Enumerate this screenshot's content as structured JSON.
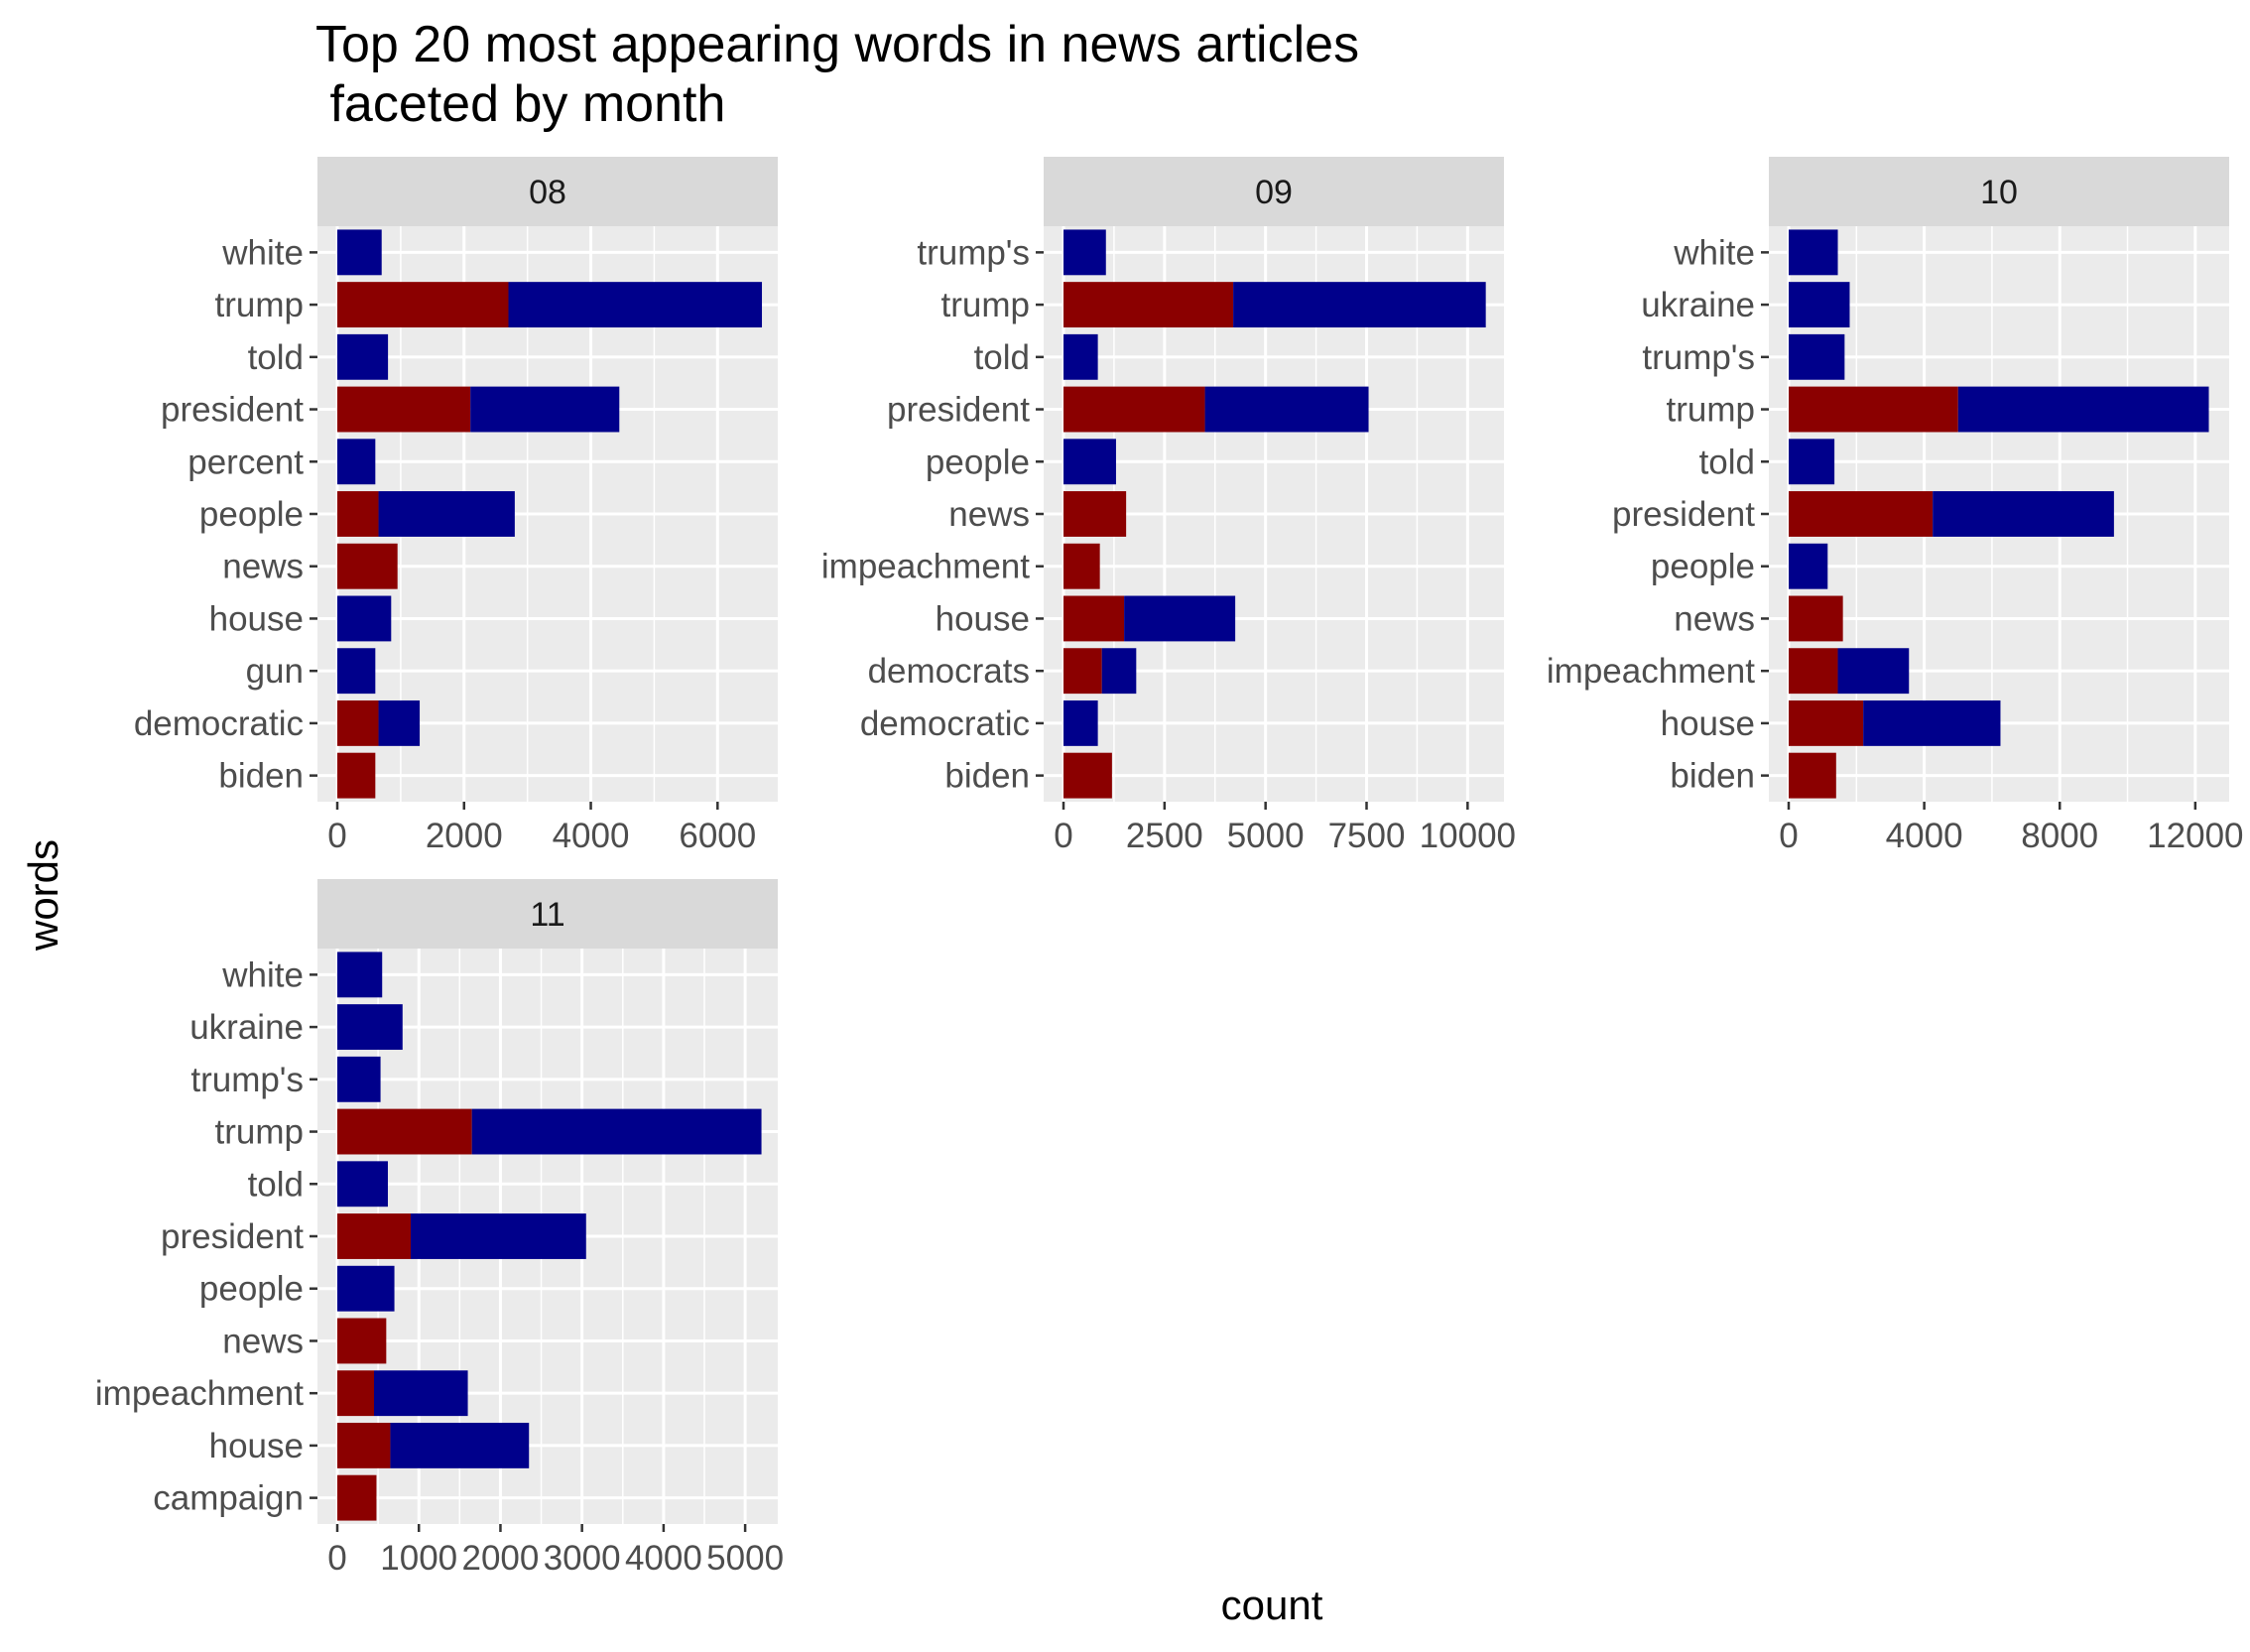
{
  "chart_data": {
    "type": "bar",
    "orientation": "horizontal",
    "stacked": true,
    "title": "Top 20 most appearing words in news articles",
    "subtitle": " faceted by month",
    "xlabel": "count",
    "ylabel": "words",
    "grid": true,
    "colors": {
      "stack_base": "#8b0000",
      "stack_top": "#00008b",
      "panel_bg": "#ebebeb",
      "strip_bg": "#d9d9d9",
      "grid": "#ffffff"
    },
    "facets": [
      {
        "label": "08",
        "xlim": [
          0,
          6950
        ],
        "ticks": [
          0,
          2000,
          4000,
          6000
        ],
        "tick_labels": [
          "0",
          "2000",
          "4000",
          "6000"
        ],
        "categories": [
          "white",
          "trump",
          "told",
          "president",
          "percent",
          "people",
          "news",
          "house",
          "gun",
          "democratic",
          "biden"
        ],
        "segments": [
          [
            [
              700,
              "stack_top"
            ]
          ],
          [
            [
              2700,
              "stack_base"
            ],
            [
              6700,
              "stack_top"
            ]
          ],
          [
            [
              800,
              "stack_top"
            ]
          ],
          [
            [
              2100,
              "stack_base"
            ],
            [
              4450,
              "stack_top"
            ]
          ],
          [
            [
              600,
              "stack_top"
            ]
          ],
          [
            [
              650,
              "stack_base"
            ],
            [
              2800,
              "stack_top"
            ]
          ],
          [
            [
              950,
              "stack_base"
            ]
          ],
          [
            [
              850,
              "stack_top"
            ]
          ],
          [
            [
              600,
              "stack_top"
            ]
          ],
          [
            [
              650,
              "stack_base"
            ],
            [
              1300,
              "stack_top"
            ]
          ],
          [
            [
              600,
              "stack_base"
            ]
          ]
        ]
      },
      {
        "label": "09",
        "xlim": [
          0,
          10900
        ],
        "ticks": [
          0,
          2500,
          5000,
          7500,
          10000
        ],
        "tick_labels": [
          "0",
          "2500",
          "5000",
          "7500",
          "10000"
        ],
        "categories": [
          "trump's",
          "trump",
          "told",
          "president",
          "people",
          "news",
          "impeachment",
          "house",
          "democrats",
          "democratic",
          "biden"
        ],
        "segments": [
          [
            [
              1050,
              "stack_top"
            ]
          ],
          [
            [
              4200,
              "stack_base"
            ],
            [
              10450,
              "stack_top"
            ]
          ],
          [
            [
              850,
              "stack_top"
            ]
          ],
          [
            [
              3500,
              "stack_base"
            ],
            [
              7550,
              "stack_top"
            ]
          ],
          [
            [
              1300,
              "stack_top"
            ]
          ],
          [
            [
              1550,
              "stack_base"
            ]
          ],
          [
            [
              900,
              "stack_base"
            ]
          ],
          [
            [
              1500,
              "stack_base"
            ],
            [
              4250,
              "stack_top"
            ]
          ],
          [
            [
              950,
              "stack_base"
            ],
            [
              1800,
              "stack_top"
            ]
          ],
          [
            [
              850,
              "stack_top"
            ]
          ],
          [
            [
              1200,
              "stack_base"
            ]
          ]
        ]
      },
      {
        "label": "10",
        "xlim": [
          0,
          13000
        ],
        "ticks": [
          0,
          4000,
          8000,
          12000
        ],
        "tick_labels": [
          "0",
          "4000",
          "8000",
          "12000"
        ],
        "categories": [
          "white",
          "ukraine",
          "trump's",
          "trump",
          "told",
          "president",
          "people",
          "news",
          "impeachment",
          "house",
          "biden"
        ],
        "segments": [
          [
            [
              1450,
              "stack_top"
            ]
          ],
          [
            [
              1800,
              "stack_top"
            ]
          ],
          [
            [
              1650,
              "stack_top"
            ]
          ],
          [
            [
              5000,
              "stack_base"
            ],
            [
              12400,
              "stack_top"
            ]
          ],
          [
            [
              1350,
              "stack_top"
            ]
          ],
          [
            [
              4250,
              "stack_base"
            ],
            [
              9600,
              "stack_top"
            ]
          ],
          [
            [
              1150,
              "stack_top"
            ]
          ],
          [
            [
              1600,
              "stack_base"
            ]
          ],
          [
            [
              1450,
              "stack_base"
            ],
            [
              3550,
              "stack_top"
            ]
          ],
          [
            [
              2200,
              "stack_base"
            ],
            [
              6250,
              "stack_top"
            ]
          ],
          [
            [
              1400,
              "stack_base"
            ]
          ]
        ]
      },
      {
        "label": "11",
        "xlim": [
          0,
          5400
        ],
        "ticks": [
          0,
          1000,
          2000,
          3000,
          4000,
          5000
        ],
        "tick_labels": [
          "0",
          "1000",
          "2000",
          "3000",
          "4000",
          "5000"
        ],
        "categories": [
          "white",
          "ukraine",
          "trump's",
          "trump",
          "told",
          "president",
          "people",
          "news",
          "impeachment",
          "house",
          "campaign"
        ],
        "segments": [
          [
            [
              550,
              "stack_top"
            ]
          ],
          [
            [
              800,
              "stack_top"
            ]
          ],
          [
            [
              530,
              "stack_top"
            ]
          ],
          [
            [
              1650,
              "stack_base"
            ],
            [
              5200,
              "stack_top"
            ]
          ],
          [
            [
              620,
              "stack_top"
            ]
          ],
          [
            [
              900,
              "stack_base"
            ],
            [
              3050,
              "stack_top"
            ]
          ],
          [
            [
              700,
              "stack_top"
            ]
          ],
          [
            [
              600,
              "stack_base"
            ]
          ],
          [
            [
              450,
              "stack_base"
            ],
            [
              1600,
              "stack_top"
            ]
          ],
          [
            [
              650,
              "stack_base"
            ],
            [
              2350,
              "stack_top"
            ]
          ],
          [
            [
              480,
              "stack_base"
            ]
          ]
        ]
      }
    ]
  }
}
